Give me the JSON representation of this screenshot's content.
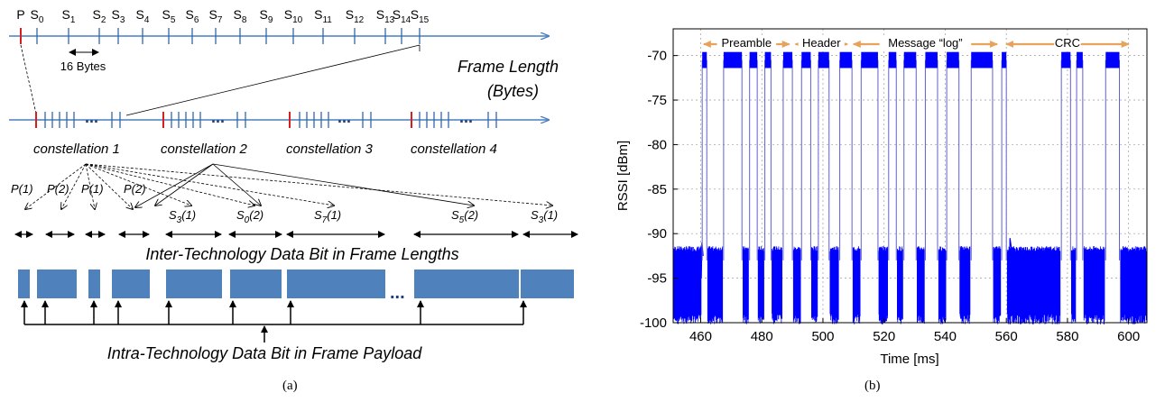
{
  "panel_a": {
    "caption": "(a)",
    "top_labels": [
      "P",
      "S0",
      "S1",
      "S2",
      "S3",
      "S4",
      "S5",
      "S6",
      "S7",
      "S8",
      "S9",
      "S10",
      "S11",
      "S12",
      "S13",
      "S14",
      "S15"
    ],
    "sixteen_bytes": "16 Bytes",
    "frame_length_line1": "Frame Length",
    "frame_length_line2": "(Bytes)",
    "ellipsis": "...",
    "constellations": [
      "constellation 1",
      "constellation 2",
      "constellation 3",
      "constellation 4"
    ],
    "p_labels": [
      "P(1)",
      "P(2)",
      "P(1)",
      "P(2)"
    ],
    "s_labels": [
      "S3(1)",
      "S0(2)",
      "S7(1)",
      "S5(2)",
      "S3(1)"
    ],
    "inter_label": "Inter-Technology Data Bit in Frame Lengths",
    "intra_label": "Intra-Technology Data Bit in Frame Payload",
    "colors": {
      "axis": "#4a7fc1",
      "marker": "#d62020",
      "block": "#4f81bd"
    }
  },
  "panel_b": {
    "caption": "(b)",
    "segment_labels": [
      "Preamble",
      "Header",
      "Message “log”",
      "CRC"
    ],
    "segment_color": "#e8a25a",
    "trace_color": "#0000ff"
  },
  "chart_data": {
    "type": "line",
    "xlabel": "Time [ms]",
    "ylabel": "RSSI  [dBm]",
    "xlim": [
      451,
      606
    ],
    "ylim": [
      -100,
      -67
    ],
    "xticks": [
      460,
      480,
      500,
      520,
      540,
      560,
      580,
      600
    ],
    "yticks": [
      -70,
      -75,
      -80,
      -85,
      -90,
      -95,
      -100
    ],
    "grid": true,
    "noise_floor": {
      "low": -99,
      "high": -92
    },
    "pulse_level": -70.5,
    "frames": [
      {
        "start": 460.5,
        "end": 462.0,
        "level": -70.5
      },
      {
        "start": 467.5,
        "end": 473.5,
        "level": -70.5
      },
      {
        "start": 476.0,
        "end": 478.5,
        "level": -70.5
      },
      {
        "start": 481.0,
        "end": 483.0,
        "level": -70.5
      },
      {
        "start": 487.0,
        "end": 490.0,
        "level": -70.5
      },
      {
        "start": 493.0,
        "end": 496.0,
        "level": -70.5
      },
      {
        "start": 498.5,
        "end": 502.0,
        "level": -70.5
      },
      {
        "start": 505.5,
        "end": 509.5,
        "level": -70.5
      },
      {
        "start": 512.5,
        "end": 518.0,
        "level": -70.5
      },
      {
        "start": 521.5,
        "end": 524.0,
        "level": -70.5
      },
      {
        "start": 526.5,
        "end": 530.5,
        "level": -70.5
      },
      {
        "start": 533.5,
        "end": 537.5,
        "level": -70.5
      },
      {
        "start": 540.5,
        "end": 544.5,
        "level": -70.5
      },
      {
        "start": 548.5,
        "end": 555.5,
        "level": -70.5
      },
      {
        "start": 558.5,
        "end": 560.0,
        "level": -70.5
      },
      {
        "start": 578.0,
        "end": 581.0,
        "level": -70.5
      },
      {
        "start": 583.0,
        "end": 585.0,
        "level": -70.5
      },
      {
        "start": 592.5,
        "end": 597.0,
        "level": -70.5
      }
    ],
    "segments": [
      {
        "label": "Preamble",
        "start": 461,
        "end": 489
      },
      {
        "label": "Header",
        "start": 491,
        "end": 508
      },
      {
        "label": "Message “log”",
        "start": 510,
        "end": 557
      },
      {
        "label": "CRC",
        "start": 560,
        "end": 600
      }
    ]
  }
}
